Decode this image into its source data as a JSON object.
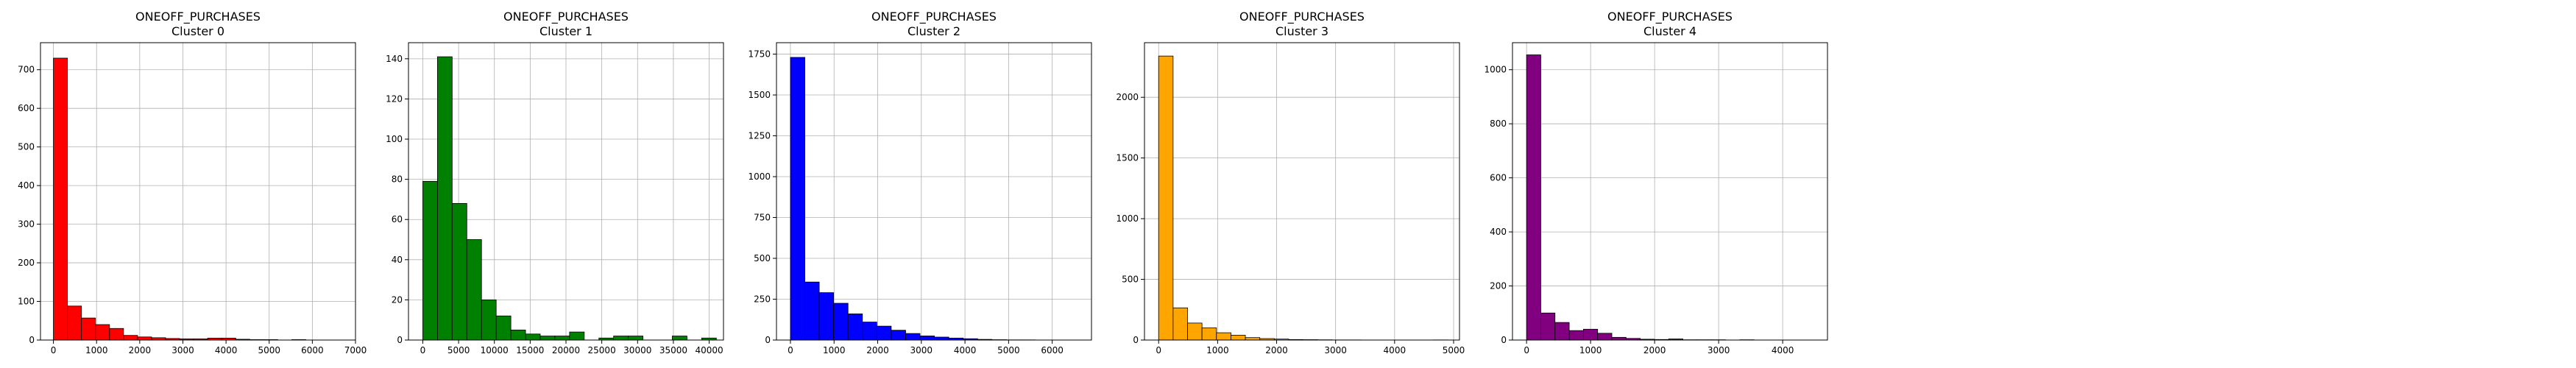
{
  "chart_data": [
    {
      "type": "histogram",
      "title": "ONEOFF_PURCHASES",
      "subtitle": "Cluster 0",
      "color": "#ff0000",
      "xlim": [
        -300,
        7000
      ],
      "ylim": [
        0,
        770
      ],
      "xticks": [
        0,
        1000,
        2000,
        3000,
        4000,
        5000,
        6000,
        7000
      ],
      "yticks": [
        0,
        100,
        200,
        300,
        400,
        500,
        600,
        700
      ],
      "grid": true,
      "bin_width": 325,
      "bin_start": 0,
      "values": [
        730,
        88,
        57,
        40,
        30,
        12,
        8,
        6,
        4,
        3,
        3,
        5,
        5,
        2,
        1,
        1,
        0,
        1,
        0,
        0
      ]
    },
    {
      "type": "histogram",
      "title": "ONEOFF_PURCHASES",
      "subtitle": "Cluster 1",
      "color": "#008000",
      "xlim": [
        -2000,
        42000
      ],
      "ylim": [
        0,
        148
      ],
      "xticks": [
        0,
        5000,
        10000,
        15000,
        20000,
        25000,
        30000,
        35000,
        40000
      ],
      "yticks": [
        0,
        20,
        40,
        60,
        80,
        100,
        120,
        140
      ],
      "grid": true,
      "bin_width": 2050,
      "bin_start": 0,
      "values": [
        79,
        141,
        68,
        50,
        20,
        12,
        5,
        3,
        2,
        2,
        4,
        0,
        1,
        2,
        2,
        0,
        0,
        2,
        0,
        1
      ]
    },
    {
      "type": "histogram",
      "title": "ONEOFF_PURCHASES",
      "subtitle": "Cluster 2",
      "color": "#0000ff",
      "xlim": [
        -320,
        6900
      ],
      "ylim": [
        0,
        1820
      ],
      "xticks": [
        0,
        1000,
        2000,
        3000,
        4000,
        5000,
        6000
      ],
      "yticks": [
        0,
        250,
        500,
        750,
        1000,
        1250,
        1500,
        1750
      ],
      "grid": true,
      "bin_width": 330,
      "bin_start": 0,
      "values": [
        1730,
        355,
        290,
        225,
        160,
        110,
        85,
        60,
        40,
        25,
        18,
        12,
        8,
        4,
        2,
        1,
        1,
        0,
        0,
        0
      ]
    },
    {
      "type": "histogram",
      "title": "ONEOFF_PURCHASES",
      "subtitle": "Cluster 3",
      "color": "#ffa500",
      "xlim": [
        -240,
        5100
      ],
      "ylim": [
        0,
        2450
      ],
      "xticks": [
        0,
        1000,
        2000,
        3000,
        4000,
        5000
      ],
      "yticks": [
        0,
        500,
        1000,
        1500,
        2000
      ],
      "grid": true,
      "bin_width": 245,
      "bin_start": 0,
      "values": [
        2340,
        265,
        140,
        100,
        60,
        40,
        20,
        12,
        8,
        4,
        3,
        2,
        1,
        1,
        0,
        0,
        0,
        0,
        0,
        1
      ]
    },
    {
      "type": "histogram",
      "title": "ONEOFF_PURCHASES",
      "subtitle": "Cluster 4",
      "color": "#800080",
      "xlim": [
        -220,
        4700
      ],
      "ylim": [
        0,
        1100
      ],
      "xticks": [
        0,
        1000,
        2000,
        3000,
        4000
      ],
      "yticks": [
        0,
        200,
        400,
        600,
        800,
        1000
      ],
      "grid": true,
      "bin_width": 222,
      "bin_start": 0,
      "values": [
        1055,
        100,
        65,
        35,
        40,
        25,
        10,
        6,
        3,
        2,
        4,
        1,
        1,
        1,
        0,
        1,
        0,
        0,
        0,
        0
      ]
    }
  ]
}
